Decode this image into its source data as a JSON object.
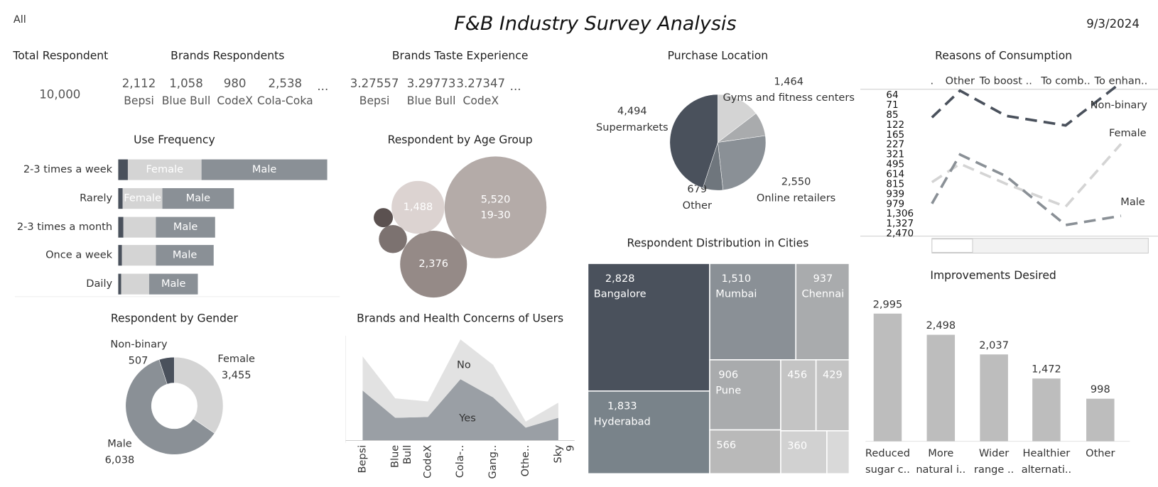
{
  "header": {
    "filter": "All",
    "title": "F&B Industry Survey Analysis",
    "date": "9/3/2024"
  },
  "kpis": {
    "total": {
      "title": "Total Respondent",
      "value": "10,000"
    },
    "brands": {
      "title": "Brands Respondents",
      "items": [
        {
          "value": "2,112",
          "label": "Bepsi"
        },
        {
          "value": "1,058",
          "label": "Blue Bull"
        },
        {
          "value": "980",
          "label": "CodeX"
        },
        {
          "value": "2,538",
          "label": "Cola-Coka"
        }
      ],
      "more": "..."
    },
    "taste": {
      "title": "Brands Taste Experience",
      "items": [
        {
          "value": "3.27557",
          "label": "Bepsi"
        },
        {
          "value": "3.29773",
          "label": "Blue Bull"
        },
        {
          "value": "3.27347",
          "label": "CodeX"
        }
      ],
      "more": "..."
    }
  },
  "chart_data": [
    {
      "type": "bar",
      "orientation": "horizontal",
      "stacked": true,
      "title": "Use Frequency",
      "categories": [
        "2-3 times a week",
        "Rarely",
        "2-3 times a month",
        "Once a week",
        "Daily"
      ],
      "series": [
        {
          "color": "#4a515c",
          "values": [
            160,
            74,
            86,
            62,
            49
          ]
        },
        {
          "name": "Female",
          "color": "#d4d4d4",
          "values": [
            1225,
            660,
            540,
            565,
            465
          ]
        },
        {
          "name": "Male",
          "color": "#8a9096",
          "values": [
            2090,
            1190,
            985,
            960,
            810
          ]
        }
      ]
    },
    {
      "type": "bubble",
      "title": "Respondent by Age Group",
      "categories": [
        "19-30",
        null,
        null,
        null,
        null
      ],
      "values": [
        5520,
        2376,
        1488,
        420,
        196
      ],
      "value_labels": [
        "5,520",
        "2,376",
        "1,488",
        null,
        null
      ],
      "colors": [
        "#b4aba8",
        "#958a87",
        "#dcd3d1",
        "#7c7270",
        "#5b5150"
      ]
    },
    {
      "type": "pie",
      "donut": true,
      "title": "Respondent by Gender",
      "categories": [
        "Female",
        "Male",
        "Non-binary"
      ],
      "values": [
        3455,
        6038,
        507
      ],
      "value_labels": [
        "3,455",
        "6,038",
        "507"
      ],
      "colors": [
        "#d4d4d4",
        "#8a9096",
        "#4a515c"
      ]
    },
    {
      "type": "area",
      "stacked": true,
      "title": "Brands and Health Concerns of Users",
      "categories": [
        "Bepsi",
        "Blue Bull",
        "CodeX",
        "Cola-..",
        "Gang..",
        "Othe..",
        "Sky 9"
      ],
      "series": [
        {
          "name": "Yes",
          "color": "#9a9fa5",
          "values": [
            1254,
            570,
            590,
            1540,
            1083,
            323,
            570
          ]
        },
        {
          "name": "No",
          "color": "#e2e2e2",
          "values": [
            858,
            488,
            390,
            998,
            817,
            152,
            380
          ]
        }
      ]
    },
    {
      "type": "pie",
      "title": "Purchase Location",
      "categories": [
        "Gyms and fitness centers",
        null,
        "Online retailers",
        "Other",
        "Supermarkets"
      ],
      "values": [
        1464,
        813,
        2550,
        679,
        4494
      ],
      "value_labels": [
        "1,464",
        null,
        "2,550",
        "679",
        "4,494"
      ],
      "colors": [
        "#d4d4d4",
        "#a9abad",
        "#8a9096",
        "#6f767d",
        "#4a515c"
      ]
    },
    {
      "type": "treemap",
      "title": "Respondent Distribution in Cities",
      "categories": [
        "Bangalore",
        "Mumbai",
        "Chennai",
        "Hyderabad",
        "Pune",
        null,
        null,
        null,
        null,
        null
      ],
      "values": [
        2828,
        1510,
        937,
        1833,
        906,
        456,
        429,
        566,
        360,
        175
      ],
      "value_labels": [
        "2,828",
        "1,510",
        "937",
        "1,833",
        "906",
        "456",
        "429",
        "566",
        "360",
        null
      ],
      "colors": [
        "#4a515c",
        "#8a9096",
        "#a9abad",
        "#79838a",
        "#a9abad",
        "#c4c4c4",
        "#c4c4c4",
        "#b9b9b9",
        "#d1d1d1",
        "#d9d9d9"
      ]
    },
    {
      "type": "line",
      "title": "Reasons of Consumption",
      "categories": [
        ".",
        "Other",
        "To boost ..",
        "To comb..",
        "To enhan.."
      ],
      "y_labels": [
        "64",
        "71",
        "85",
        "122",
        "165",
        "227",
        "321",
        "495",
        "614",
        "815",
        "939",
        "979",
        "1,306",
        "1,327",
        "2,470"
      ],
      "series": [
        {
          "name": "Non-binary",
          "color": "#4a515c",
          "axis": "y2",
          "values": [
            115,
            165,
            118,
            100,
            180
          ]
        },
        {
          "name": "Female",
          "color": "#d4d4d4",
          "values": [
            700,
            820,
            690,
            540,
            950
          ]
        },
        {
          "name": "Male",
          "color": "#8a9096",
          "values": [
            560,
            880,
            740,
            420,
            480
          ]
        }
      ]
    },
    {
      "type": "bar",
      "title": "Improvements Desired",
      "categories": [
        "Reduced sugar c..",
        "More natural i..",
        "Wider range ..",
        "Healthier alternati..",
        "Other"
      ],
      "values": [
        2995,
        2498,
        2037,
        1472,
        998
      ],
      "value_labels": [
        "2,995",
        "2,498",
        "2,037",
        "1,472",
        "998"
      ],
      "color": "#bdbdbd"
    }
  ]
}
